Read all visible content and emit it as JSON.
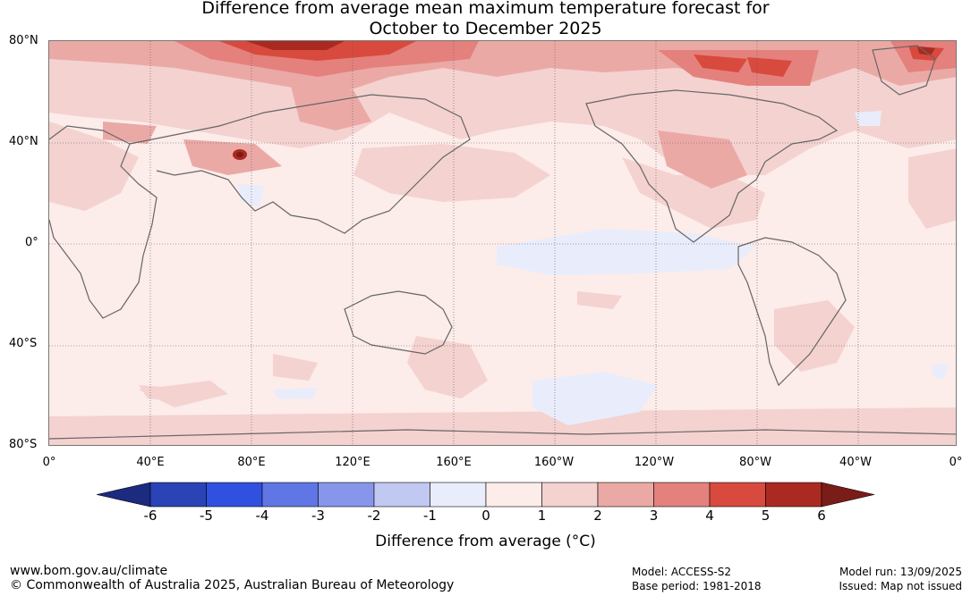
{
  "title_line1": "Difference from average mean maximum temperature forecast for",
  "title_line2": "October to December 2025",
  "lat_labels": [
    "80°N",
    "40°N",
    "0°",
    "40°S",
    "80°S"
  ],
  "lon_labels": [
    "0°",
    "40°E",
    "80°E",
    "120°E",
    "160°E",
    "160°W",
    "120°W",
    "80°W",
    "40°W",
    "0°"
  ],
  "legend": {
    "ticks": [
      "-6",
      "-5",
      "-4",
      "-3",
      "-2",
      "-1",
      "0",
      "1",
      "2",
      "3",
      "4",
      "5",
      "6"
    ],
    "colors": [
      "#1c2a80",
      "#2a43b6",
      "#3050e0",
      "#5f76e4",
      "#8796ea",
      "#c1c8f2",
      "#e9edfb",
      "#fcecea",
      "#f4d2d0",
      "#eba9a6",
      "#e4817c",
      "#d84a3e",
      "#aa2a22",
      "#7a1c18"
    ],
    "label": "Difference from average (°C)"
  },
  "footer": {
    "website": "www.bom.gov.au/climate",
    "copyright": "© Commonwealth of Australia 2025, Australian Bureau of Meteorology",
    "model": "Model: ACCESS-S2",
    "base_period": "Base period: 1981-2018",
    "model_run": "Model run: 13/09/2025",
    "issued": "Issued: Map not issued"
  }
}
